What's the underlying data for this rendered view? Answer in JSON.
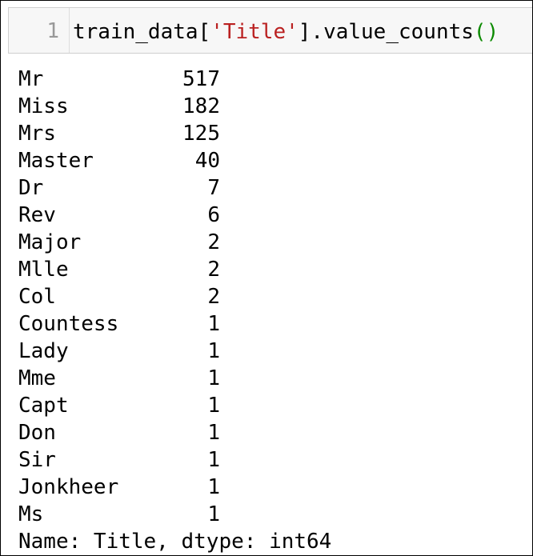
{
  "cell": {
    "line_number": "1",
    "code": {
      "prefix": "train_data[",
      "string": "'Title'",
      "suffix": "].value_counts",
      "parens": "()"
    }
  },
  "output": {
    "rows": [
      {
        "label": "Mr",
        "count": "517"
      },
      {
        "label": "Miss",
        "count": "182"
      },
      {
        "label": "Mrs",
        "count": "125"
      },
      {
        "label": "Master",
        "count": "40"
      },
      {
        "label": "Dr",
        "count": "7"
      },
      {
        "label": "Rev",
        "count": "6"
      },
      {
        "label": "Major",
        "count": "2"
      },
      {
        "label": "Mlle",
        "count": "2"
      },
      {
        "label": "Col",
        "count": "2"
      },
      {
        "label": "Countess",
        "count": "1"
      },
      {
        "label": "Lady",
        "count": "1"
      },
      {
        "label": "Mme",
        "count": "1"
      },
      {
        "label": "Capt",
        "count": "1"
      },
      {
        "label": "Don",
        "count": "1"
      },
      {
        "label": "Sir",
        "count": "1"
      },
      {
        "label": "Jonkheer",
        "count": "1"
      },
      {
        "label": "Ms",
        "count": "1"
      }
    ],
    "footer": "Name: Title, dtype: int64"
  },
  "colors": {
    "string": "#ba2121",
    "parens": "#0b8a00",
    "input_background": "#f7f7f7"
  }
}
